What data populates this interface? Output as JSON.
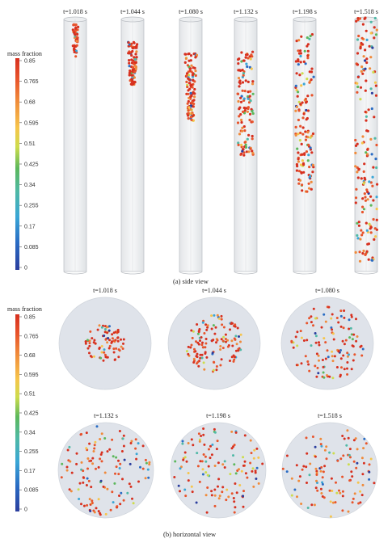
{
  "figure": {
    "colorbar_title": "mass fraction",
    "colorbar_ticks": [
      "0.85",
      "0.765",
      "0.68",
      "0.595",
      "0.51",
      "0.425",
      "0.34",
      "0.255",
      "0.17",
      "0.085",
      "0"
    ],
    "colorbar_stops": [
      "#d7301f",
      "#e8542b",
      "#f08a3a",
      "#f6c54b",
      "#cddc4d",
      "#5cb85c",
      "#4fb9a6",
      "#3aa6d6",
      "#2a6cc4",
      "#2b3e9e"
    ],
    "side_view": {
      "caption": "(a) side view",
      "times": [
        "t=1.018 s",
        "t=1.044 s",
        "t=1.080 s",
        "t=1.132 s",
        "t=1.198 s",
        "t=1.518 s"
      ]
    },
    "horizontal_view": {
      "caption": "(b) horizontal view",
      "row1_times": [
        "t=1.018 s",
        "t=1.044 s",
        "t=1.080 s"
      ],
      "row2_times": [
        "t=1.132 s",
        "t=1.198 s",
        "t=1.518 s"
      ]
    }
  }
}
